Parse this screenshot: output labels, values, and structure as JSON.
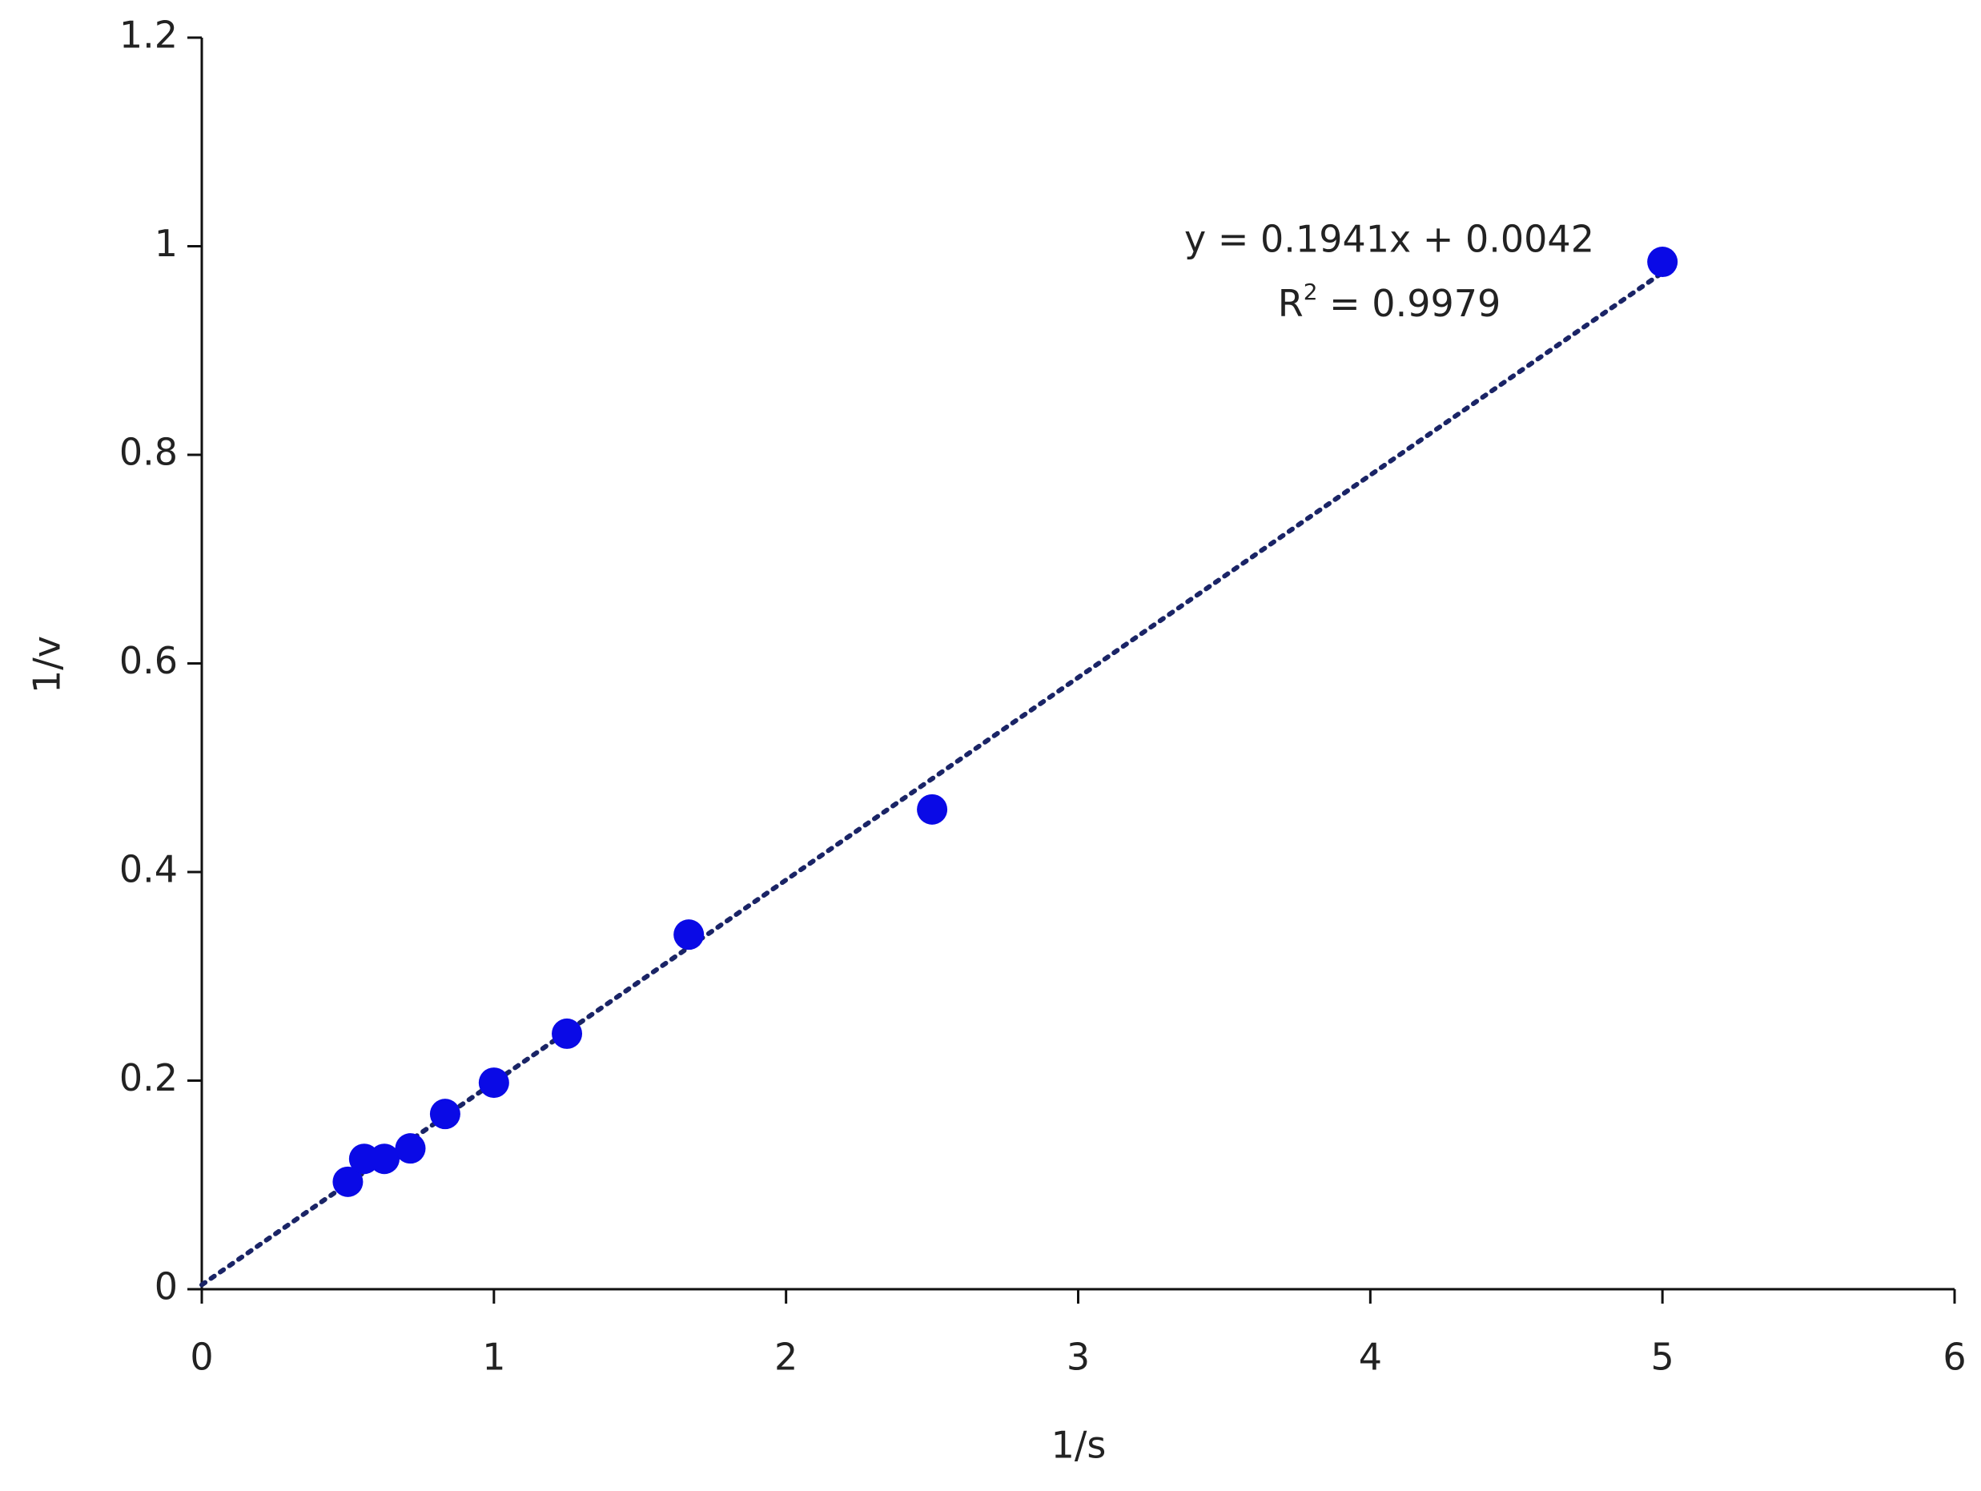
{
  "chart_data": {
    "type": "scatter",
    "x_label": "1/s",
    "y_label": "1/v",
    "x": [
      0.5,
      0.556,
      0.625,
      0.714,
      0.833,
      1.0,
      1.25,
      1.667,
      2.5,
      5.0
    ],
    "values": [
      0.103,
      0.125,
      0.125,
      0.135,
      0.168,
      0.198,
      0.245,
      0.34,
      0.46,
      0.985
    ],
    "color": "#0a0ae6",
    "trendline": {
      "x": [
        0,
        5
      ],
      "values": [
        0.0042,
        0.9747
      ],
      "color": "#1a2466"
    },
    "equation": "y = 0.1941x + 0.0042",
    "r2": {
      "base": "R",
      "sup": "2",
      "rest": " = 0.9979"
    },
    "xlim": [
      0,
      6
    ],
    "xticks": [
      0,
      1,
      2,
      3,
      4,
      5,
      6
    ],
    "ylim": [
      0,
      1.2
    ],
    "yticks": [
      0,
      0.2,
      0.4,
      0.6,
      0.8,
      1,
      1.2
    ],
    "grid": false
  }
}
